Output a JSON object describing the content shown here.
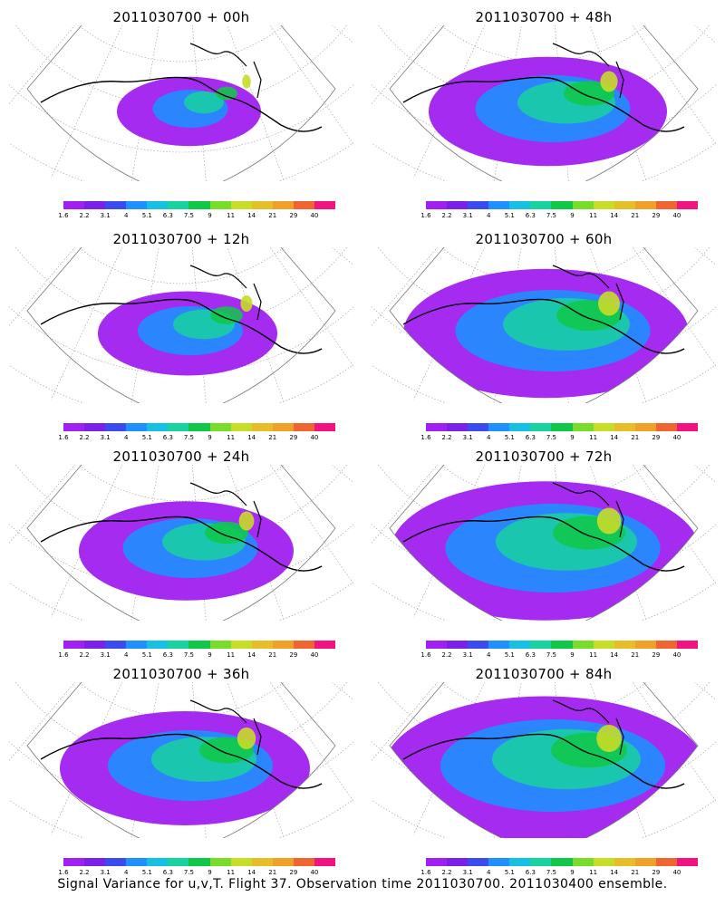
{
  "panels": [
    {
      "title": "2011030700 + 00h",
      "coverage": 0.15
    },
    {
      "title": "2011030700 + 48h",
      "coverage": 0.55
    },
    {
      "title": "2011030700 + 12h",
      "coverage": 0.3
    },
    {
      "title": "2011030700 + 60h",
      "coverage": 0.75
    },
    {
      "title": "2011030700 + 24h",
      "coverage": 0.45
    },
    {
      "title": "2011030700 + 72h",
      "coverage": 0.85
    },
    {
      "title": "2011030700 + 36h",
      "coverage": 0.6
    },
    {
      "title": "2011030700 + 84h",
      "coverage": 0.9
    }
  ],
  "colorbar": {
    "labels": [
      "1.6",
      "2.2",
      "3.1",
      "4",
      "5.1",
      "6.3",
      "7.5",
      "9",
      "11",
      "14",
      "21",
      "29",
      "40"
    ],
    "colors": [
      "#a020f0",
      "#7a20e8",
      "#3a4bf0",
      "#1e90ff",
      "#16c0e0",
      "#18d2a0",
      "#10c848",
      "#78dc2a",
      "#c8dc28",
      "#e6be28",
      "#f0a028",
      "#f06432",
      "#f01480"
    ]
  },
  "caption": "Signal Variance for u,v,T. Flight 37. Observation time 2011030700. 2011030400 ensemble."
}
